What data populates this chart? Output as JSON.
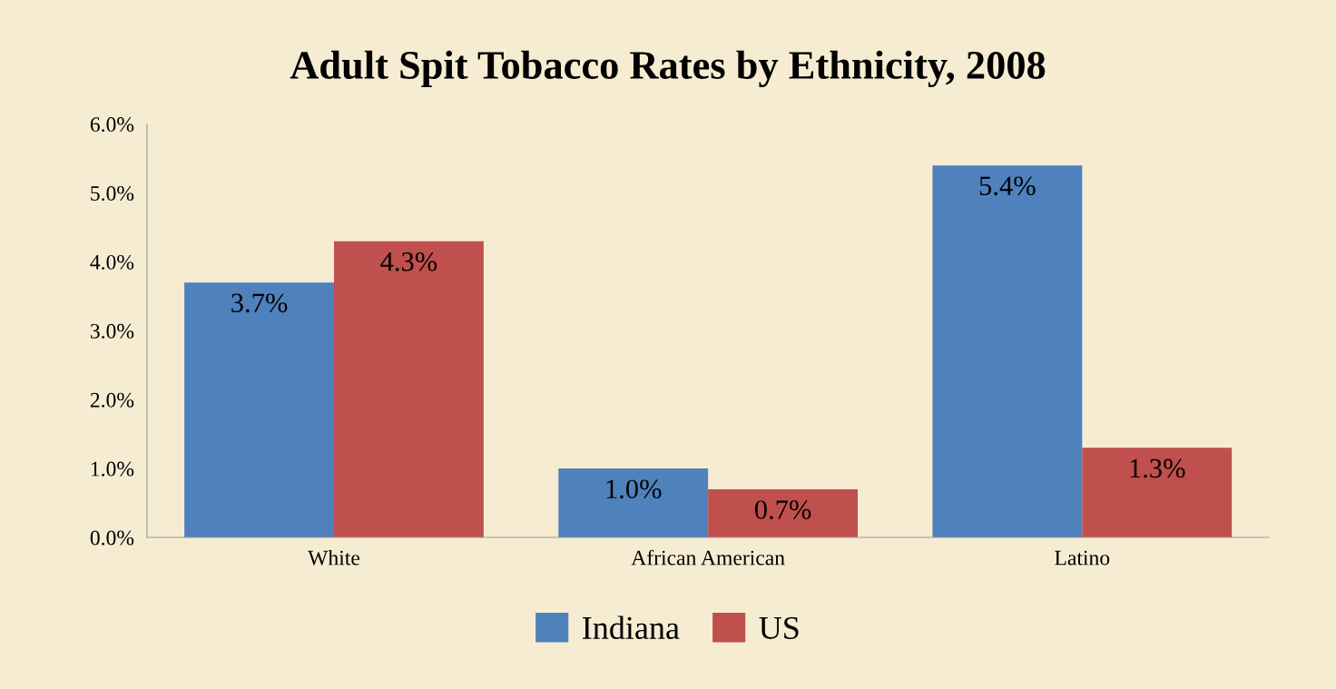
{
  "chart_data": {
    "type": "bar",
    "title": "Adult Spit Tobacco Rates by Ethnicity, 2008",
    "categories": [
      "White",
      "African American",
      "Latino"
    ],
    "series": [
      {
        "name": "Indiana",
        "color": "#4f81bd",
        "values": [
          3.7,
          1.0,
          5.4
        ],
        "value_labels": [
          "3.7%",
          "1.0%",
          "5.4%"
        ]
      },
      {
        "name": "US",
        "color": "#c0504d",
        "values": [
          4.3,
          0.7,
          1.3
        ],
        "value_labels": [
          "4.3%",
          "0.7%",
          "1.3%"
        ]
      }
    ],
    "ylim": [
      0,
      6
    ],
    "yticks": [
      {
        "value": 0,
        "label": "0.0%"
      },
      {
        "value": 1,
        "label": "1.0%"
      },
      {
        "value": 2,
        "label": "2.0%"
      },
      {
        "value": 3,
        "label": "3.0%"
      },
      {
        "value": 4,
        "label": "4.0%"
      },
      {
        "value": 5,
        "label": "5.0%"
      },
      {
        "value": 6,
        "label": "6.0%"
      }
    ],
    "grid": false,
    "legend": "bottom"
  }
}
